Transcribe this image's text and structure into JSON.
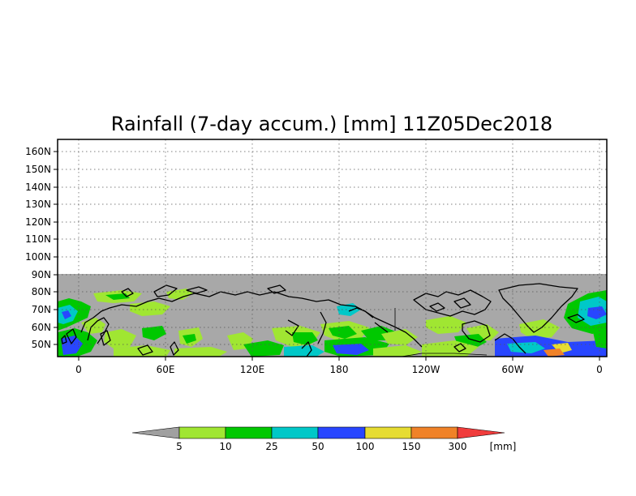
{
  "title": "Rainfall (7-day accum.) [mm] 11Z05Dec2018",
  "lat_labels": [
    "160N",
    "150N",
    "140N",
    "130N",
    "120N",
    "110N",
    "100N",
    "90N",
    "80N",
    "70N",
    "60N",
    "50N"
  ],
  "lon_labels": [
    "0",
    "60E",
    "120E",
    "180",
    "120W",
    "60W",
    "0"
  ],
  "colorbar": {
    "unit_label": "[mm]",
    "thresholds": [
      "5",
      "10",
      "25",
      "50",
      "100",
      "150",
      "300"
    ],
    "colors": [
      "#a0a0a0",
      "#a0e632",
      "#00c800",
      "#00c8c8",
      "#2846ff",
      "#e6dc32",
      "#f08228",
      "#f03c3c"
    ]
  },
  "map": {
    "no_data_color": "#a8a8a8",
    "lat_range": [
      43,
      172
    ],
    "lon_range": [
      -15,
      360
    ],
    "data_lat_range": [
      43,
      90
    ]
  }
}
